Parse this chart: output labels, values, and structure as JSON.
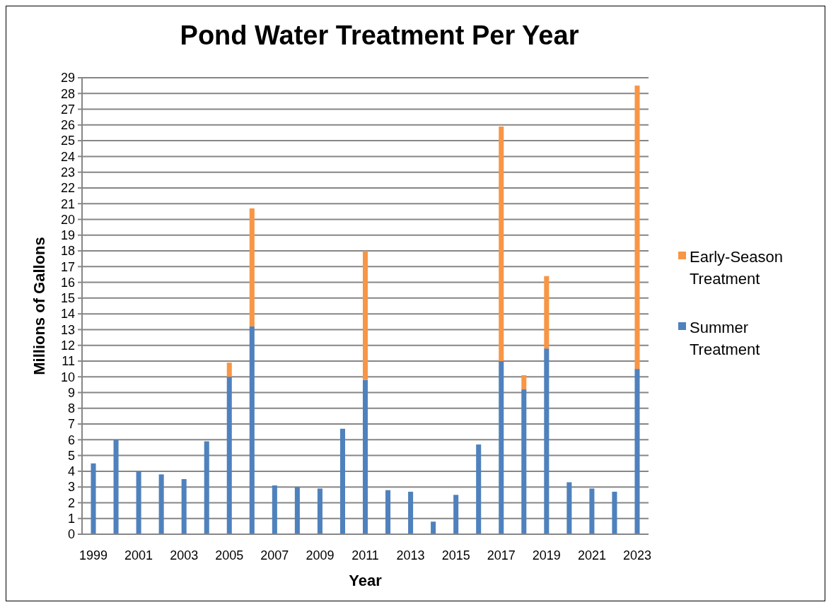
{
  "chart_data": {
    "type": "bar",
    "title": "Pond Water Treatment Per Year",
    "xlabel": "Year",
    "ylabel": "Millions of Gallons",
    "categories": [
      "1999",
      null,
      "2001",
      null,
      "2003",
      null,
      "2005",
      null,
      "2007",
      null,
      "2009",
      null,
      "2011",
      null,
      "2013",
      null,
      "2015",
      null,
      "2017",
      null,
      "2019",
      null,
      "2021",
      null,
      "2023"
    ],
    "stacked": true,
    "series": [
      {
        "name": "Summer Treatment",
        "color": "#4f81bd",
        "values": [
          4.5,
          6.0,
          4.0,
          3.8,
          3.5,
          5.9,
          10.0,
          13.2,
          3.1,
          3.0,
          2.9,
          6.7,
          9.8,
          2.8,
          2.7,
          0.8,
          2.5,
          5.7,
          11.0,
          9.2,
          11.8,
          3.3,
          2.9,
          2.7,
          10.5
        ]
      },
      {
        "name": "Early-Season Treatment",
        "color": "#f79646",
        "values": [
          0,
          0,
          0,
          0,
          0,
          0,
          0.9,
          7.5,
          0,
          0,
          0,
          0,
          8.2,
          0,
          0,
          0,
          0,
          0,
          14.9,
          0.9,
          4.6,
          0,
          0,
          0,
          18.0
        ]
      }
    ],
    "ylim": [
      0,
      29
    ],
    "yticks": [
      0,
      1,
      2,
      3,
      4,
      5,
      6,
      7,
      8,
      9,
      10,
      11,
      12,
      13,
      14,
      15,
      16,
      17,
      18,
      19,
      20,
      21,
      22,
      23,
      24,
      25,
      26,
      27,
      28,
      29
    ],
    "grid": "y",
    "legend": "right"
  }
}
